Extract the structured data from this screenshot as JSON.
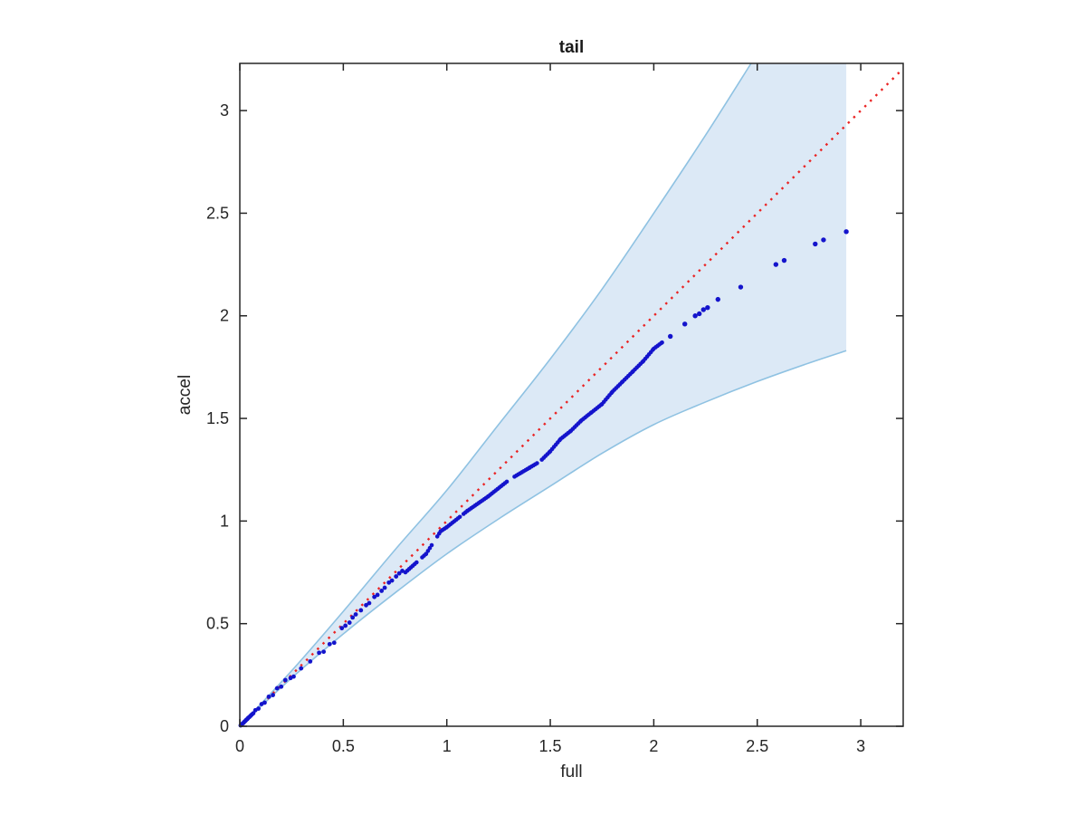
{
  "window": {
    "background": "#ffffff"
  },
  "chart_data": {
    "type": "scatter",
    "title": "tail",
    "xlabel": "full",
    "ylabel": "accel",
    "xlim": [
      0,
      3.205
    ],
    "ylim": [
      0,
      3.23
    ],
    "xticks": [
      "0",
      "0.5",
      "1",
      "1.5",
      "2",
      "2.5",
      "3"
    ],
    "xtick_values": [
      0,
      0.5,
      1,
      1.5,
      2,
      2.5,
      3
    ],
    "yticks": [
      "0",
      "0.5",
      "1",
      "1.5",
      "2",
      "2.5",
      "3"
    ],
    "ytick_values": [
      0,
      0.5,
      1,
      1.5,
      2,
      2.5,
      3
    ],
    "grid": false,
    "box": true,
    "legend": "none",
    "colors": {
      "marker": "#1414cc",
      "reference_line": "#ea2323",
      "band_fill": "#dce9f6",
      "band_edge": "#8fc2e2",
      "axis": "#262626"
    },
    "reference_line": {
      "name": "y = x reference",
      "from": [
        0,
        0
      ],
      "to": [
        3.205,
        3.205
      ],
      "style": "dotted"
    },
    "confidence_band": {
      "name": "pointwise confidence envelope",
      "x_end": 2.93,
      "top_clip": 3.23,
      "upper_edge": [
        [
          0,
          0
        ],
        [
          0.25,
          0.27
        ],
        [
          0.5,
          0.56
        ],
        [
          0.75,
          0.86
        ],
        [
          1.0,
          1.15
        ],
        [
          1.25,
          1.47
        ],
        [
          1.5,
          1.79
        ],
        [
          1.75,
          2.13
        ],
        [
          2.0,
          2.5
        ],
        [
          2.25,
          2.88
        ],
        [
          2.47,
          3.23
        ]
      ],
      "lower_edge": [
        [
          0,
          0
        ],
        [
          0.25,
          0.235
        ],
        [
          0.5,
          0.45
        ],
        [
          0.75,
          0.65
        ],
        [
          1.0,
          0.84
        ],
        [
          1.25,
          1.01
        ],
        [
          1.5,
          1.17
        ],
        [
          1.75,
          1.33
        ],
        [
          2.0,
          1.47
        ],
        [
          2.25,
          1.58
        ],
        [
          2.5,
          1.68
        ],
        [
          2.75,
          1.77
        ],
        [
          2.93,
          1.83
        ]
      ]
    },
    "points": {
      "discrete_low": [
        [
          0.004,
          0.004
        ],
        [
          0.009,
          0.009
        ],
        [
          0.013,
          0.013
        ],
        [
          0.018,
          0.017
        ],
        [
          0.022,
          0.022
        ],
        [
          0.027,
          0.026
        ],
        [
          0.031,
          0.031
        ],
        [
          0.036,
          0.035
        ],
        [
          0.04,
          0.04
        ],
        [
          0.046,
          0.045
        ],
        [
          0.052,
          0.051
        ],
        [
          0.058,
          0.057
        ],
        [
          0.065,
          0.063
        ],
        [
          0.075,
          0.078
        ],
        [
          0.09,
          0.086
        ],
        [
          0.105,
          0.108
        ],
        [
          0.12,
          0.115
        ],
        [
          0.14,
          0.144
        ],
        [
          0.16,
          0.152
        ],
        [
          0.18,
          0.185
        ],
        [
          0.2,
          0.193
        ],
        [
          0.22,
          0.225
        ],
        [
          0.245,
          0.235
        ],
        [
          0.26,
          0.242
        ],
        [
          0.296,
          0.282
        ],
        [
          0.34,
          0.316
        ],
        [
          0.383,
          0.358
        ],
        [
          0.405,
          0.363
        ],
        [
          0.434,
          0.4
        ],
        [
          0.456,
          0.407
        ],
        [
          0.493,
          0.478
        ],
        [
          0.51,
          0.49
        ],
        [
          0.53,
          0.505
        ],
        [
          0.545,
          0.53
        ],
        [
          0.56,
          0.545
        ],
        [
          0.585,
          0.565
        ],
        [
          0.61,
          0.59
        ],
        [
          0.625,
          0.6
        ],
        [
          0.65,
          0.63
        ],
        [
          0.665,
          0.64
        ],
        [
          0.685,
          0.66
        ],
        [
          0.7,
          0.675
        ],
        [
          0.72,
          0.7
        ],
        [
          0.735,
          0.71
        ],
        [
          0.755,
          0.73
        ],
        [
          0.77,
          0.745
        ],
        [
          0.785,
          0.757
        ]
      ],
      "dense_chain": {
        "knots": [
          [
            0.8,
            0.75
          ],
          [
            0.9,
            0.84
          ],
          [
            0.97,
            0.95
          ],
          [
            1.0,
            0.97
          ],
          [
            1.1,
            1.05
          ],
          [
            1.2,
            1.12
          ],
          [
            1.3,
            1.2
          ],
          [
            1.4,
            1.26
          ],
          [
            1.45,
            1.29
          ],
          [
            1.5,
            1.34
          ],
          [
            1.55,
            1.4
          ],
          [
            1.6,
            1.44
          ],
          [
            1.65,
            1.49
          ],
          [
            1.7,
            1.53
          ],
          [
            1.75,
            1.57
          ],
          [
            1.8,
            1.63
          ],
          [
            1.85,
            1.68
          ],
          [
            1.9,
            1.73
          ],
          [
            1.95,
            1.78
          ],
          [
            2.0,
            1.84
          ],
          [
            2.04,
            1.87
          ]
        ],
        "spacing": 0.009,
        "gaps": [
          [
            0.862,
            0.878
          ],
          [
            0.934,
            0.95
          ],
          [
            1.063,
            1.072
          ],
          [
            1.295,
            1.318
          ],
          [
            1.44,
            1.458
          ]
        ]
      },
      "discrete_high": [
        [
          2.08,
          1.9
        ],
        [
          2.15,
          1.96
        ],
        [
          2.2,
          2.0
        ],
        [
          2.22,
          2.01
        ],
        [
          2.24,
          2.03
        ],
        [
          2.26,
          2.04
        ],
        [
          2.31,
          2.08
        ],
        [
          2.42,
          2.14
        ],
        [
          2.59,
          2.25
        ],
        [
          2.63,
          2.27
        ],
        [
          2.78,
          2.35
        ],
        [
          2.82,
          2.37
        ],
        [
          2.93,
          2.41
        ]
      ]
    }
  }
}
